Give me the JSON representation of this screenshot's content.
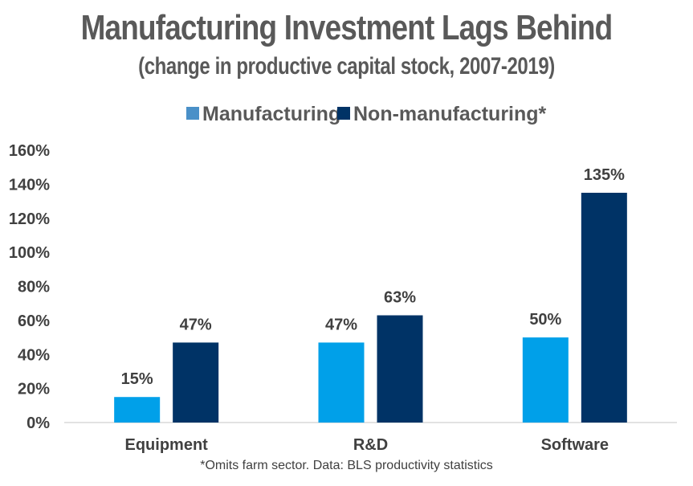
{
  "chart_data": {
    "type": "bar",
    "title": "Manufacturing Investment Lags Behind",
    "subtitle": "(change in productive capital stock, 2007-2019)",
    "categories": [
      "Equipment",
      "R&D",
      "Software"
    ],
    "series": [
      {
        "name": "Manufacturing",
        "values": [
          15,
          47,
          50
        ],
        "labels": [
          "15%",
          "47%",
          "50%"
        ],
        "color": "#00A0E9"
      },
      {
        "name": "Non-manufacturing*",
        "values": [
          47,
          63,
          135
        ],
        "labels": [
          "47%",
          "63%",
          "135%"
        ],
        "color": "#003366"
      }
    ],
    "ylim": [
      0,
      160
    ],
    "yticks": [
      0,
      20,
      40,
      60,
      80,
      100,
      120,
      140,
      160
    ],
    "ytick_labels": [
      "0%",
      "20%",
      "40%",
      "60%",
      "80%",
      "100%",
      "120%",
      "140%",
      "160%"
    ],
    "legend_position": "top-center",
    "legend_colors": [
      "#4A90C8",
      "#003366"
    ],
    "grid": false,
    "note": "*Omits farm sector. Data: BLS productivity statistics"
  }
}
